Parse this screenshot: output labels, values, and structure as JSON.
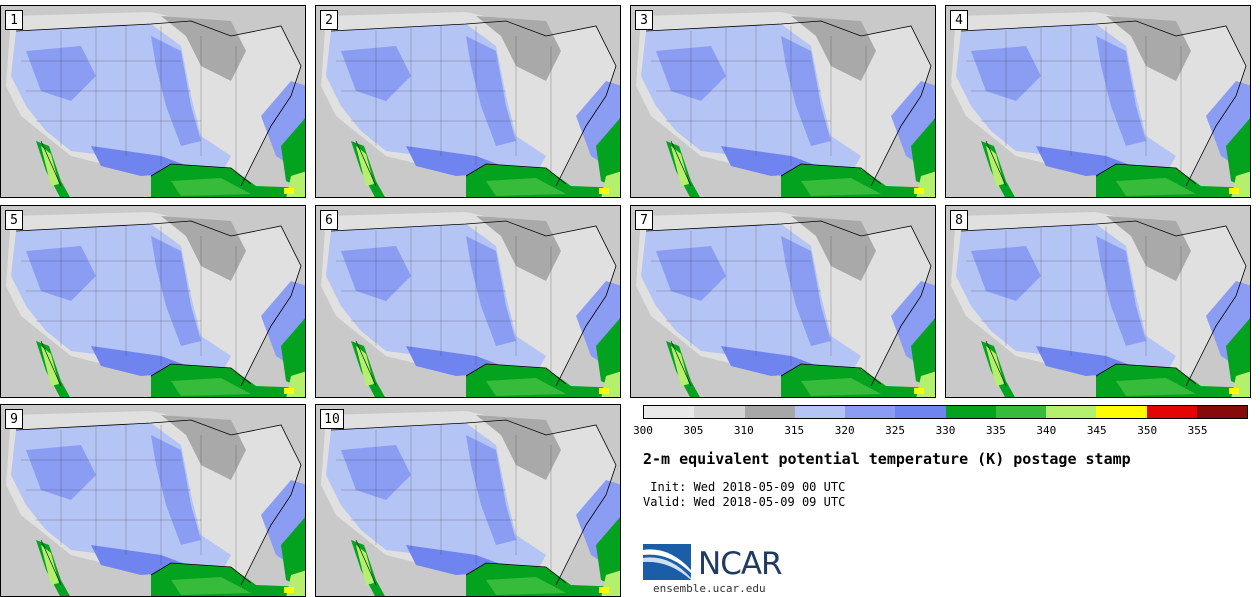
{
  "panels": [
    {
      "label": "1"
    },
    {
      "label": "2"
    },
    {
      "label": "3"
    },
    {
      "label": "4"
    },
    {
      "label": "5"
    },
    {
      "label": "6"
    },
    {
      "label": "7"
    },
    {
      "label": "8"
    },
    {
      "label": "9"
    },
    {
      "label": "10"
    }
  ],
  "colorbar": {
    "colors": [
      "#e9e9e9",
      "#d3d3d3",
      "#a7a7a7",
      "#b4c4f5",
      "#8b9cf3",
      "#6f84ef",
      "#04a31f",
      "#37bb3a",
      "#b4f06e",
      "#fffb03",
      "#e30505",
      "#870a0a"
    ],
    "ticks": [
      "300",
      "305",
      "310",
      "315",
      "320",
      "325",
      "330",
      "335",
      "340",
      "345",
      "350",
      "355"
    ]
  },
  "title": "2-m equivalent potential temperature (K) postage stamp",
  "init": " Init: Wed 2018-05-09 00 UTC",
  "valid": "Valid: Wed 2018-05-09 09 UTC",
  "logo": {
    "name": "NCAR",
    "site": "ensemble.ucar.edu",
    "colors": {
      "blue": "#1a5ea8",
      "dark": "#1f3b64"
    }
  },
  "map_colors": {
    "ocean_gray": "#c9c9c9",
    "land_light": "#e0e0e0",
    "land_mid": "#a9a9a9",
    "blue_light": "#b4c4f5",
    "blue_mid": "#8b9cf3",
    "blue_dark": "#6f84ef",
    "green_dark": "#04a31f",
    "green_mid": "#37bb3a",
    "green_light": "#b4f06e",
    "yellow": "#fffb03"
  }
}
